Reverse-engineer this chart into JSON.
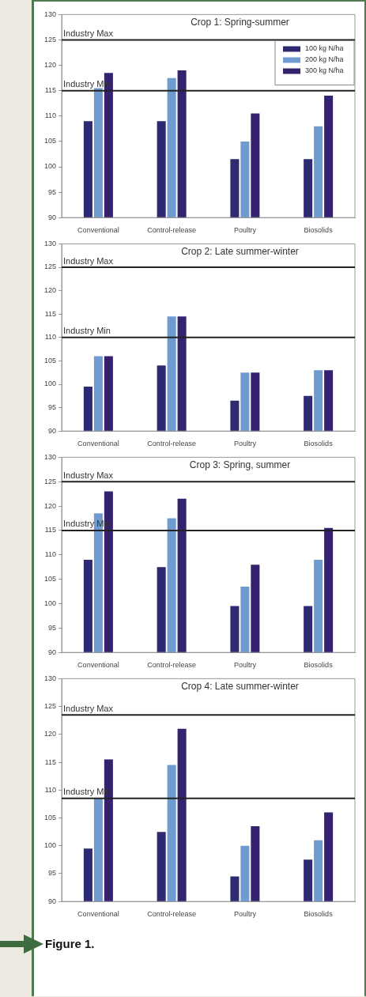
{
  "chart_data": [
    {
      "type": "bar",
      "title": "Crop 1: Spring-summer",
      "categories": [
        "Conventional",
        "Control-release",
        "Poultry",
        "Biosolids"
      ],
      "series": [
        {
          "name": "100 kg N/ha",
          "color": "#2e2a72",
          "values": [
            109,
            109,
            101.5,
            101.5
          ]
        },
        {
          "name": "200 kg N/ha",
          "color": "#6f9bd0",
          "values": [
            115.5,
            117.5,
            105,
            108
          ]
        },
        {
          "name": "300 kg N/ha",
          "color": "#35226e",
          "values": [
            118.5,
            119,
            110.5,
            114
          ]
        }
      ],
      "ylim": [
        90,
        130
      ],
      "yticks": [
        90,
        95,
        100,
        105,
        110,
        115,
        120,
        125,
        130
      ],
      "ref_lines": [
        {
          "axis": "y",
          "value": 125,
          "label": "Industry Max",
          "color": "#222222"
        },
        {
          "axis": "y",
          "value": 115,
          "label": "Industry Min",
          "color": "#222222"
        }
      ],
      "legend": "top right"
    },
    {
      "type": "bar",
      "title": "Crop 2: Late summer-winter",
      "categories": [
        "Conventional",
        "Control-release",
        "Poultry",
        "Biosolids"
      ],
      "series": [
        {
          "color": "#2e2a72",
          "values": [
            99.5,
            104,
            96.5,
            97.5
          ]
        },
        {
          "color": "#6f9bd0",
          "values": [
            106,
            114.5,
            102.5,
            103
          ]
        },
        {
          "color": "#35226e",
          "values": [
            106,
            114.5,
            102.5,
            103
          ]
        }
      ],
      "ylim": [
        90,
        130
      ],
      "yticks": [
        90,
        95,
        100,
        105,
        110,
        115,
        120,
        125,
        130
      ],
      "ref_lines": [
        {
          "axis": "y",
          "value": 125,
          "label": "Industry Max",
          "color": "#222222"
        },
        {
          "axis": "y",
          "value": 110,
          "label": "Industry Min",
          "color": "#222222"
        }
      ]
    },
    {
      "type": "bar",
      "title": "Crop 3: Spring, summer",
      "categories": [
        "Conventional",
        "Control-release",
        "Poultry",
        "Biosolids"
      ],
      "series": [
        {
          "color": "#2e2a72",
          "values": [
            109,
            107.5,
            99.5,
            99.5
          ]
        },
        {
          "color": "#6f9bd0",
          "values": [
            118.5,
            117.5,
            103.5,
            109
          ]
        },
        {
          "color": "#35226e",
          "values": [
            123,
            121.5,
            108,
            115.5
          ]
        }
      ],
      "ylim": [
        90,
        130
      ],
      "yticks": [
        90,
        95,
        100,
        105,
        110,
        115,
        120,
        125,
        130
      ],
      "ref_lines": [
        {
          "axis": "y",
          "value": 125,
          "label": "Industry Max",
          "color": "#222222"
        },
        {
          "axis": "y",
          "value": 115,
          "label": "Industry Min",
          "color": "#222222"
        }
      ]
    },
    {
      "type": "bar",
      "title": "Crop 4: Late summer-winter",
      "categories": [
        "Conventional",
        "Control-release",
        "Poultry",
        "Biosolids"
      ],
      "series": [
        {
          "color": "#2e2a72",
          "values": [
            99.5,
            102.5,
            94.5,
            97.5
          ]
        },
        {
          "color": "#6f9bd0",
          "values": [
            108.5,
            114.5,
            100,
            101
          ]
        },
        {
          "color": "#35226e",
          "values": [
            115.5,
            121,
            103.5,
            106
          ]
        }
      ],
      "ylim": [
        90,
        130
      ],
      "yticks": [
        90,
        95,
        100,
        105,
        110,
        115,
        120,
        125,
        130
      ],
      "ref_lines": [
        {
          "axis": "y",
          "value": 123.5,
          "label": "Industry Max",
          "color": "#222222"
        },
        {
          "axis": "y",
          "value": 108.5,
          "label": "Industry Min",
          "color": "#222222"
        }
      ],
      "annotations": [
        "Figure 1."
      ]
    }
  ]
}
